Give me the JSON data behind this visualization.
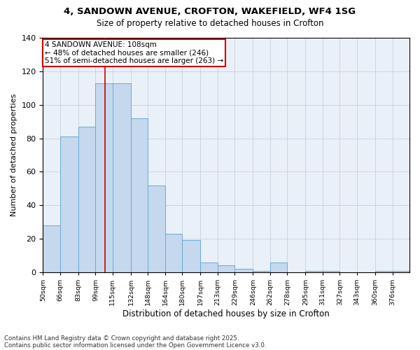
{
  "title1": "4, SANDOWN AVENUE, CROFTON, WAKEFIELD, WF4 1SG",
  "title2": "Size of property relative to detached houses in Crofton",
  "xlabel": "Distribution of detached houses by size in Crofton",
  "ylabel": "Number of detached properties",
  "bins": [
    "50sqm",
    "66sqm",
    "83sqm",
    "99sqm",
    "115sqm",
    "132sqm",
    "148sqm",
    "164sqm",
    "180sqm",
    "197sqm",
    "213sqm",
    "229sqm",
    "246sqm",
    "262sqm",
    "278sqm",
    "295sqm",
    "311sqm",
    "327sqm",
    "343sqm",
    "360sqm",
    "376sqm"
  ],
  "bin_edges": [
    50,
    66,
    83,
    99,
    115,
    132,
    148,
    164,
    180,
    197,
    213,
    229,
    246,
    262,
    278,
    295,
    311,
    327,
    343,
    360,
    376,
    392
  ],
  "values": [
    28,
    81,
    87,
    113,
    113,
    92,
    52,
    23,
    19,
    6,
    4,
    2,
    1,
    6,
    0,
    1,
    1,
    0,
    0,
    1,
    1
  ],
  "bar_color": "#c5d8ee",
  "bar_edge_color": "#6aaad4",
  "vline_x": 108,
  "vline_color": "#cc0000",
  "annotation_text": "4 SANDOWN AVENUE: 108sqm\n← 48% of detached houses are smaller (246)\n51% of semi-detached houses are larger (263) →",
  "annotation_box_color": "#ffffff",
  "annotation_box_edge": "#cc0000",
  "footnote1": "Contains HM Land Registry data © Crown copyright and database right 2025.",
  "footnote2": "Contains public sector information licensed under the Open Government Licence v3.0.",
  "ylim": [
    0,
    140
  ],
  "yticks": [
    0,
    20,
    40,
    60,
    80,
    100,
    120,
    140
  ],
  "bg_color": "#eaf0f8"
}
